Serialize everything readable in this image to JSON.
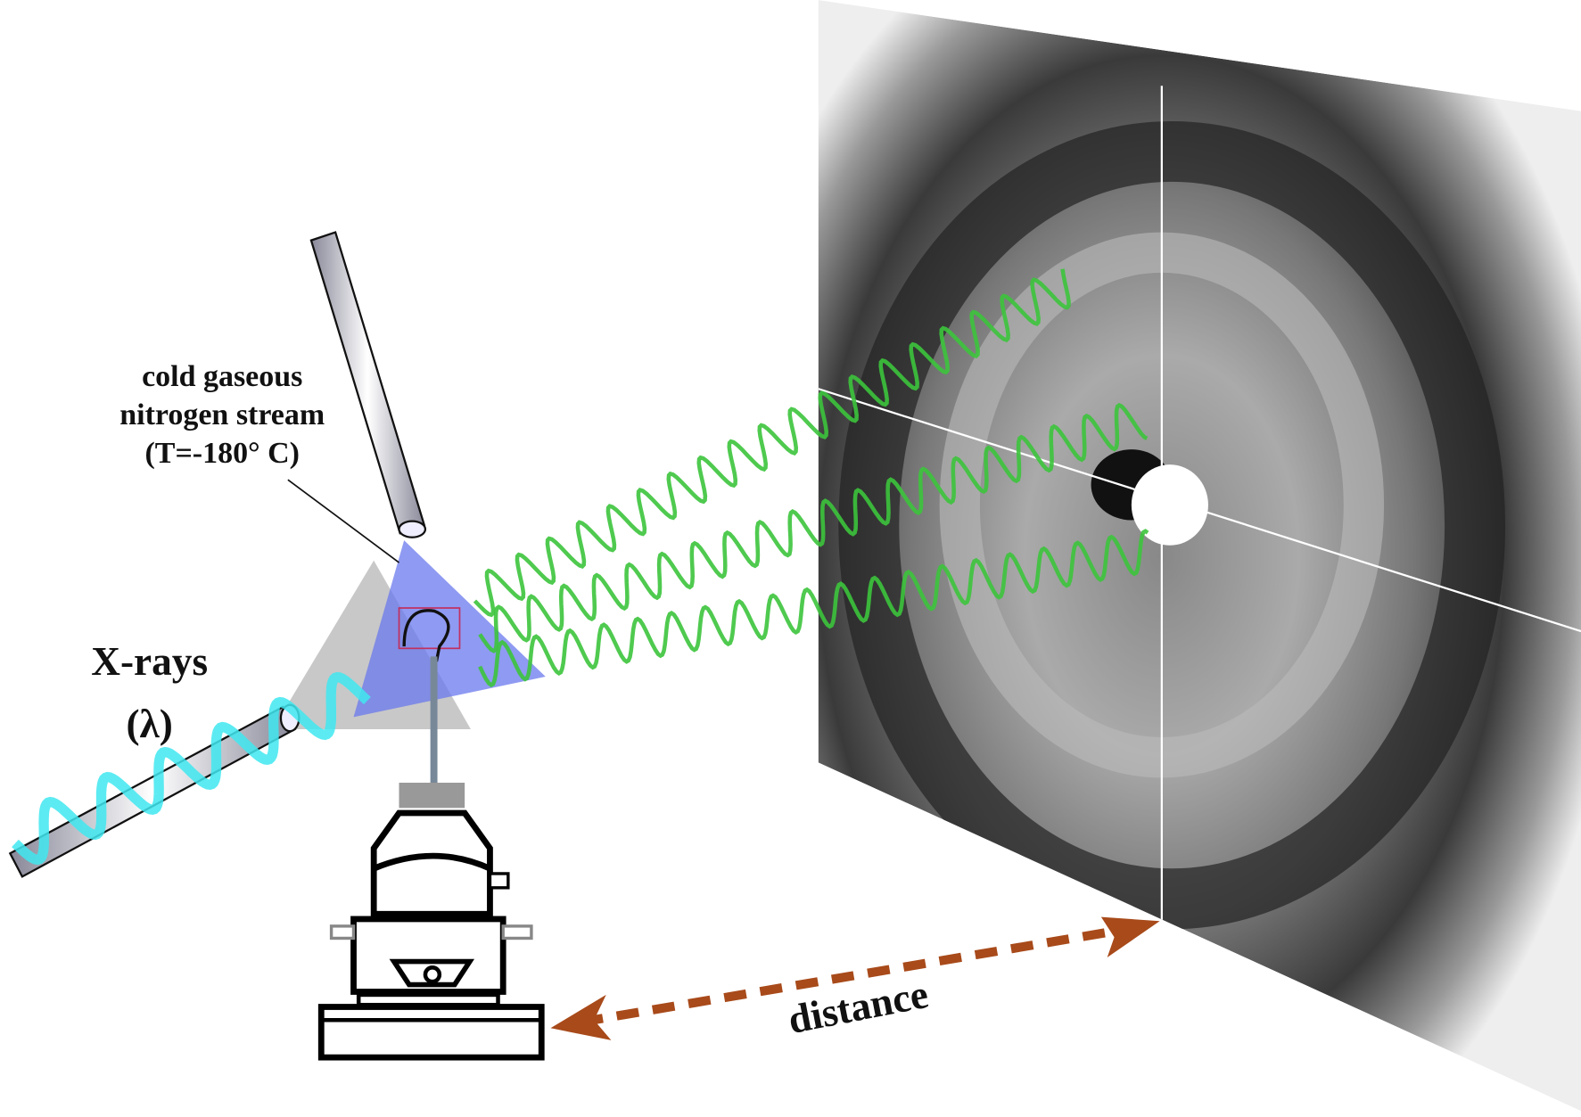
{
  "labels": {
    "nitrogen": [
      "cold gaseous",
      "nitrogen stream",
      "(T=-180° C)"
    ],
    "xrays": [
      "X-rays",
      "(λ)"
    ],
    "distance": "distance"
  }
}
